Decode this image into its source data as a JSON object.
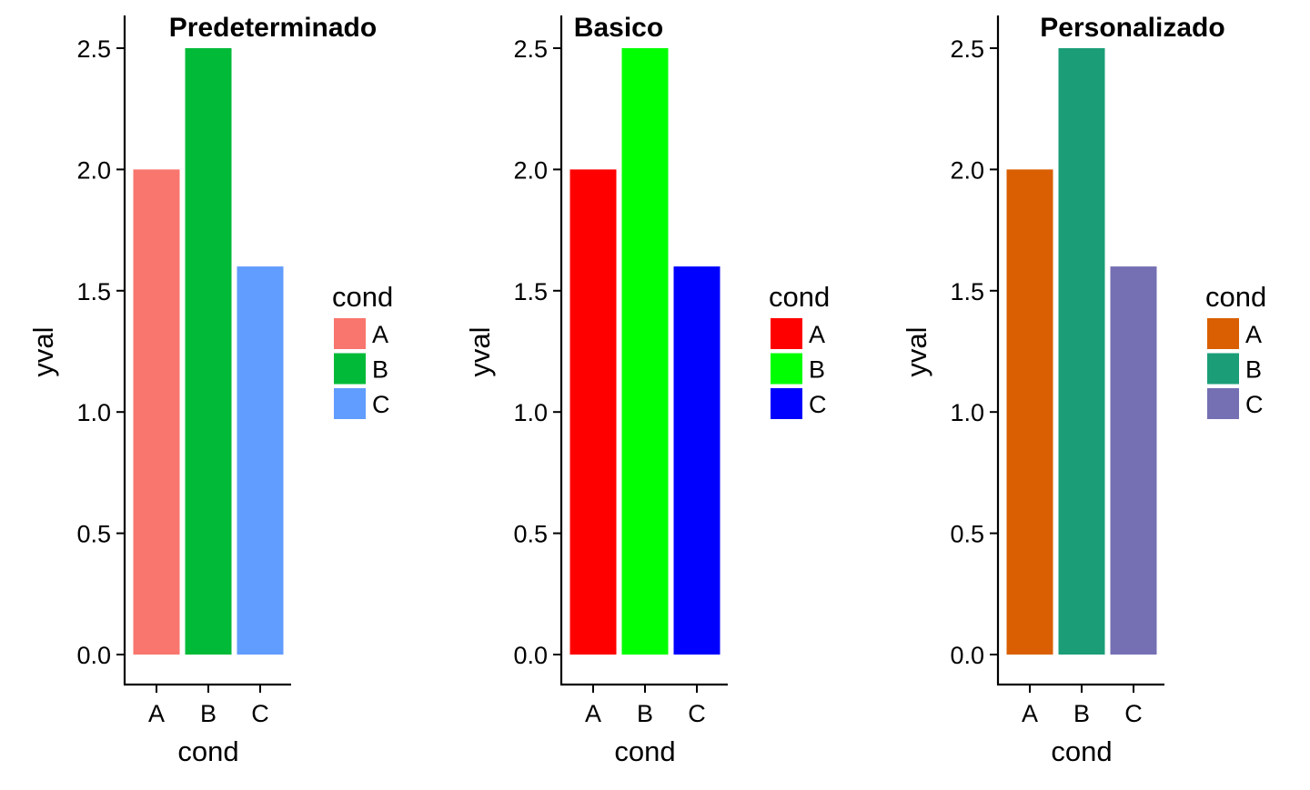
{
  "chart_data": [
    {
      "type": "bar",
      "title": "Predeterminado",
      "xlabel": "cond",
      "ylabel": "yval",
      "categories": [
        "A",
        "B",
        "C"
      ],
      "values": [
        2.0,
        2.5,
        1.6
      ],
      "colors": [
        "#F8766D",
        "#00BA38",
        "#619CFF"
      ],
      "ylim": [
        0,
        2.5
      ],
      "yticks": [
        "0.0",
        "0.5",
        "1.0",
        "1.5",
        "2.0",
        "2.5"
      ],
      "grid": false,
      "legend": {
        "title": "cond",
        "labels": [
          "A",
          "B",
          "C"
        ],
        "placement": "right"
      }
    },
    {
      "type": "bar",
      "title": "Basico",
      "xlabel": "cond",
      "ylabel": "yval",
      "categories": [
        "A",
        "B",
        "C"
      ],
      "values": [
        2.0,
        2.5,
        1.6
      ],
      "colors": [
        "#FF0000",
        "#00FF00",
        "#0000FF"
      ],
      "ylim": [
        0,
        2.5
      ],
      "yticks": [
        "0.0",
        "0.5",
        "1.0",
        "1.5",
        "2.0",
        "2.5"
      ],
      "grid": false,
      "legend": {
        "title": "cond",
        "labels": [
          "A",
          "B",
          "C"
        ],
        "placement": "right"
      }
    },
    {
      "type": "bar",
      "title": "Personalizado",
      "xlabel": "cond",
      "ylabel": "yval",
      "categories": [
        "A",
        "B",
        "C"
      ],
      "values": [
        2.0,
        2.5,
        1.6
      ],
      "colors": [
        "#D95F02",
        "#1B9E77",
        "#7570B3"
      ],
      "ylim": [
        0,
        2.5
      ],
      "yticks": [
        "0.0",
        "0.5",
        "1.0",
        "1.5",
        "2.0",
        "2.5"
      ],
      "grid": false,
      "legend": {
        "title": "cond",
        "labels": [
          "A",
          "B",
          "C"
        ],
        "placement": "right"
      }
    }
  ]
}
